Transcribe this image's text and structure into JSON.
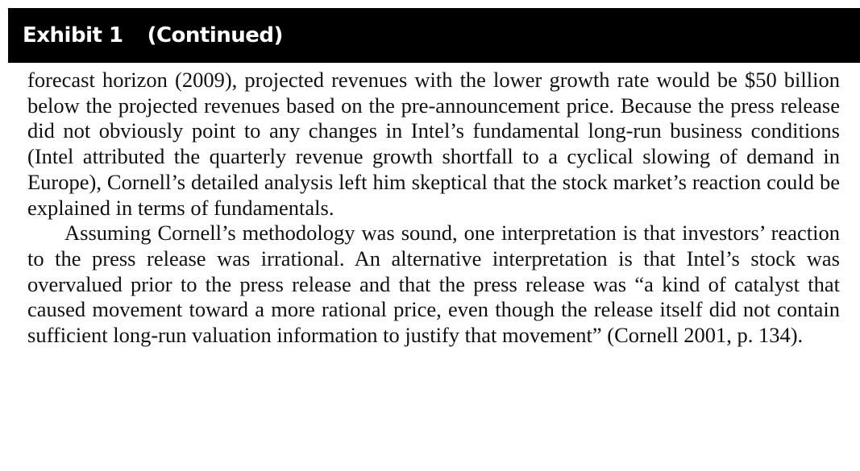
{
  "header": {
    "title": "Exhibit 1",
    "subtitle": "(Continued)"
  },
  "body": {
    "paragraphs": [
      "forecast horizon (2009), projected revenues with the lower growth rate would be $50 billion below the projected revenues based on the pre-announcement price. Because the press release did not obviously point to any changes in Intel’s fundamental long-run business conditions (Intel attributed the quarterly revenue growth shortfall to a cyclical slowing of demand in Europe), Cornell’s detailed analysis left him skeptical that the stock market’s reaction could be explained in terms of fundamentals.",
      "Assuming Cornell’s methodology was sound, one interpretation is that investors’ reaction to the press release was irrational. An alternative interpretation is that Intel’s stock was overvalued prior to the press release and that the press release was “a kind of catalyst that caused movement toward a more rational price, even though the release itself did not contain sufficient long-run valuation information to justify that movement” (Cornell 2001, p. 134)."
    ]
  },
  "colors": {
    "header_background": "#000000",
    "header_text": "#ffffff",
    "body_text": "#111111"
  }
}
